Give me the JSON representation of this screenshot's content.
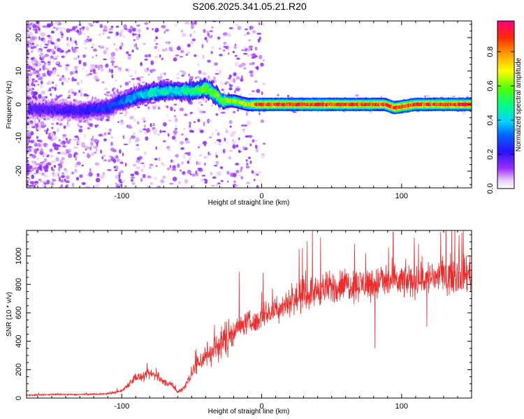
{
  "title": "S206.2025.341.05.21.R20",
  "chart_data": [
    {
      "type": "heatmap",
      "name": "spectrogram",
      "xlabel": "Height of straight line (km)",
      "ylabel": "Frequency (Hz)",
      "xlim": [
        -168,
        150
      ],
      "ylim": [
        -25,
        25
      ],
      "xticks": [
        -100,
        0,
        100
      ],
      "xtick_labels": [
        "-100",
        "0",
        "100"
      ],
      "yticks": [
        -20,
        -10,
        0,
        10,
        20
      ],
      "ytick_labels": [
        "-20",
        "-10",
        "0",
        "10",
        "20"
      ],
      "colorbar": {
        "label": "Normalized spectral amplitude",
        "range": [
          0,
          0.98
        ],
        "ticks": [
          0,
          0.2,
          0.4,
          0.6,
          0.8
        ],
        "tick_labels": [
          "0.0",
          "0.2",
          "0.4",
          "0.6",
          "0.8"
        ]
      },
      "ridge": {
        "x": [
          -150,
          -130,
          -110,
          -100,
          -85,
          -70,
          -60,
          -50,
          -40,
          -33,
          -28,
          -20,
          -10,
          0,
          20,
          40,
          60,
          80,
          88,
          95,
          110,
          130,
          150
        ],
        "freq": [
          -1.5,
          -2,
          -1,
          1,
          3,
          4,
          4,
          4,
          5,
          3,
          1,
          1,
          0,
          0,
          0,
          0,
          0,
          0,
          0,
          -1,
          0,
          0,
          0
        ],
        "amplitude": [
          0.18,
          0.22,
          0.26,
          0.3,
          0.4,
          0.45,
          0.42,
          0.5,
          0.6,
          0.55,
          0.6,
          0.65,
          0.7,
          0.9,
          0.9,
          0.9,
          0.88,
          0.88,
          0.85,
          0.9,
          0.88,
          0.9,
          0.92
        ]
      }
    },
    {
      "type": "line",
      "name": "snr",
      "xlabel": "Height of straight line (km)",
      "ylabel": "SNR (10 * v/v)",
      "xlim": [
        -168,
        150
      ],
      "ylim": [
        0,
        1180
      ],
      "xticks": [
        -100,
        0,
        100
      ],
      "xtick_labels": [
        "-100",
        "0",
        "100"
      ],
      "yticks": [
        0,
        200,
        400,
        600,
        800,
        1000
      ],
      "ytick_labels": [
        "0",
        "200",
        "400",
        "600",
        "800",
        "1000"
      ],
      "color": "#ee2a2a",
      "series": [
        {
          "name": "SNR",
          "x": [
            -168,
            -150,
            -130,
            -110,
            -100,
            -95,
            -90,
            -85,
            -80,
            -75,
            -70,
            -65,
            -60,
            -55,
            -50,
            -45,
            -40,
            -35,
            -30,
            -25,
            -20,
            -15,
            -10,
            -5,
            0,
            10,
            20,
            30,
            40,
            50,
            60,
            70,
            80,
            90,
            100,
            110,
            120,
            130,
            140,
            150
          ],
          "y": [
            20,
            25,
            25,
            30,
            50,
            100,
            150,
            140,
            170,
            160,
            110,
            100,
            40,
            80,
            180,
            250,
            300,
            330,
            380,
            420,
            480,
            500,
            540,
            520,
            580,
            620,
            680,
            720,
            760,
            780,
            800,
            800,
            810,
            820,
            820,
            830,
            850,
            860,
            870,
            880
          ]
        }
      ],
      "peaks": [
        {
          "x": -16,
          "y": 890
        },
        {
          "x": 42,
          "y": 1130
        },
        {
          "x": 94,
          "y": 1170
        },
        {
          "x": 109,
          "y": 1130
        },
        {
          "x": 128,
          "y": 1170
        },
        {
          "x": 143,
          "y": 1165
        },
        {
          "x": 81,
          "y": 350
        },
        {
          "x": 118,
          "y": 500
        }
      ]
    }
  ]
}
